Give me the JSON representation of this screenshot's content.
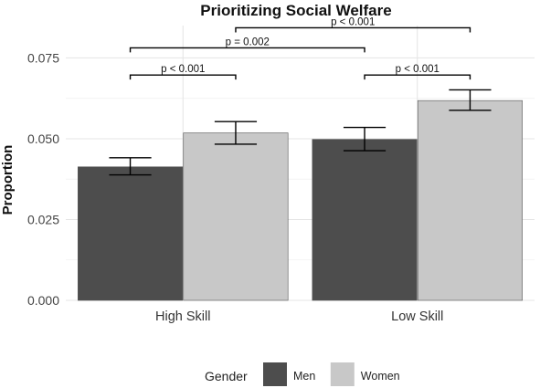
{
  "chart_data": {
    "type": "bar",
    "title": "Prioritizing Social Welfare",
    "xlabel": "",
    "ylabel": "Proportion",
    "ylim": [
      0,
      0.085
    ],
    "yticks": [
      0,
      0.025,
      0.05,
      0.075
    ],
    "ytick_labels": [
      "0.000",
      "0.025",
      "0.050",
      "0.075"
    ],
    "grid": true,
    "categories": [
      "High Skill",
      "Low Skill"
    ],
    "series": [
      {
        "name": "Men",
        "color": "#4d4d4d",
        "values": [
          0.0413,
          0.0498
        ],
        "error_low": [
          0.0388,
          0.0463
        ],
        "error_high": [
          0.0441,
          0.0535
        ]
      },
      {
        "name": "Women",
        "color": "#c8c8c8",
        "values": [
          0.0518,
          0.0618
        ],
        "error_low": [
          0.0483,
          0.0588
        ],
        "error_high": [
          0.0553,
          0.0651
        ]
      }
    ],
    "comparisons": [
      {
        "label": "p < 0.001",
        "from": {
          "category": 0,
          "series": 0
        },
        "to": {
          "category": 0,
          "series": 1
        },
        "y": 0.0697
      },
      {
        "label": "p < 0.001",
        "from": {
          "category": 1,
          "series": 0
        },
        "to": {
          "category": 1,
          "series": 1
        },
        "y": 0.0697
      },
      {
        "label": "p = 0.002",
        "from": {
          "category": 0,
          "series": 0
        },
        "to": {
          "category": 1,
          "series": 0
        },
        "y": 0.0781
      },
      {
        "label": "p < 0.001",
        "from": {
          "category": 0,
          "series": 1
        },
        "to": {
          "category": 1,
          "series": 1
        },
        "y": 0.0843
      }
    ],
    "legend": {
      "title": "Gender",
      "position": "bottom",
      "items": [
        {
          "label": "Men",
          "color": "#4d4d4d"
        },
        {
          "label": "Women",
          "color": "#c8c8c8"
        }
      ]
    }
  }
}
